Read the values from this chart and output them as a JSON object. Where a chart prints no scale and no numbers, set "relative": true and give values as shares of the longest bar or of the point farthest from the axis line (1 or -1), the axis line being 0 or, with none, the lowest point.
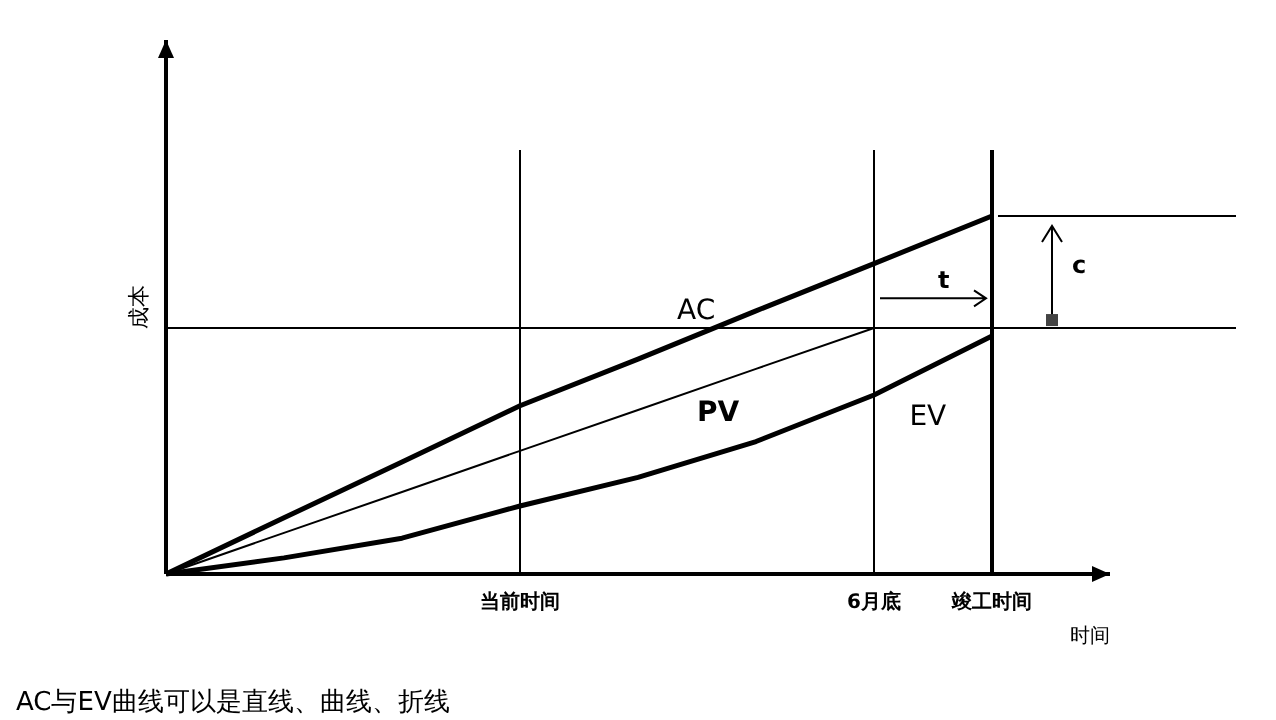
{
  "chart_data": {
    "type": "line",
    "relative": true,
    "ylabel": "成本",
    "xlabel": "时间",
    "categories": [
      null,
      null,
      null,
      "当前时间",
      null,
      null,
      "6月底",
      "竣工时间",
      null
    ],
    "series": [
      {
        "name": "AC",
        "color": "#000000",
        "values": [
          0,
          0.157,
          0.313,
          0.47,
          0.6,
          0.735,
          0.867,
          1,
          null
        ]
      },
      {
        "name": "PV",
        "color": "#000000",
        "values": [
          0,
          0.115,
          0.229,
          0.344,
          0.458,
          0.573,
          0.687,
          null,
          null
        ]
      },
      {
        "name": "EV",
        "color": "#000000",
        "values": [
          0,
          0.045,
          0.1,
          0.19,
          0.27,
          0.37,
          0.5,
          0.665,
          null
        ]
      }
    ],
    "ref_lines": [
      {
        "axis": "y",
        "value": 0.687
      },
      {
        "axis": "y",
        "value": 1
      },
      {
        "axis": "x",
        "value": "当前时间"
      },
      {
        "axis": "x",
        "value": "6月底"
      },
      {
        "axis": "x",
        "value": "竣工时间"
      }
    ],
    "annotations": [
      "t",
      "c",
      "AC与EV曲线可以是直线、曲线、折线"
    ],
    "legend": false,
    "marker": "none",
    "line_style": "solid"
  }
}
